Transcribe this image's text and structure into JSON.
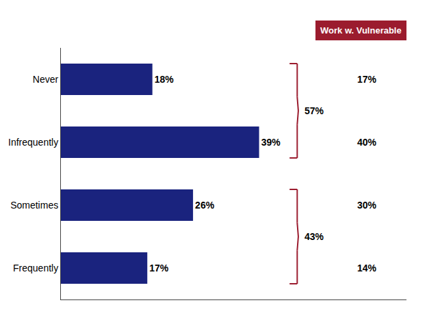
{
  "chart_data": {
    "type": "bar",
    "orientation": "horizontal",
    "categories": [
      "Never",
      "Infrequently",
      "Sometimes",
      "Frequently"
    ],
    "values": [
      18,
      39,
      26,
      17
    ],
    "value_labels": [
      "18%",
      "39%",
      "26%",
      "17%"
    ],
    "data_labels": true,
    "color": "#1a237e",
    "xlim": [
      0,
      68
    ],
    "tick_labels": "y",
    "grid": false,
    "annotations": [
      {
        "text": "17%",
        "category": "Never"
      },
      {
        "text": "40%",
        "category": "Infrequently"
      },
      {
        "text": "30%",
        "category": "Sometimes"
      },
      {
        "text": "14%",
        "category": "Frequently"
      },
      {
        "text": "57%",
        "categories": [
          "Never",
          "Infrequently"
        ],
        "color": "#9b1c2e"
      },
      {
        "text": "43%",
        "categories": [
          "Sometimes",
          "Frequently"
        ],
        "color": "#9b1c2e"
      },
      {
        "text": "Work w. Vulnerable",
        "color": "#ffffff",
        "background": "#9b1c2e"
      }
    ]
  }
}
